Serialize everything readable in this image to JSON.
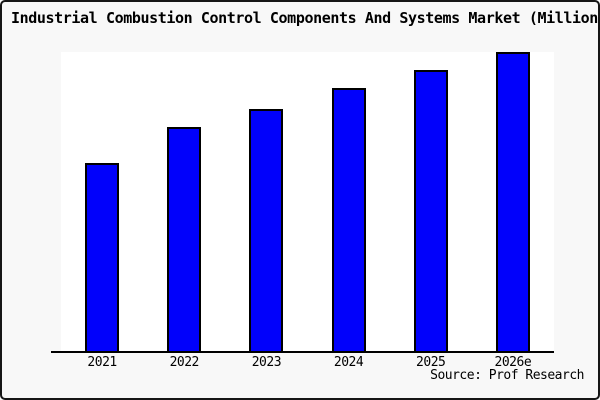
{
  "title_display": "Industrial Combustion Control Components And Systems Market (Million",
  "source": {
    "label": "Source: Prof Research"
  },
  "colors": {
    "frame_background": "#f8f8f8",
    "plot_background": "#ffffff",
    "frame_border": "#161616",
    "bar_fill": "#0101fb",
    "bar_border": "#000000",
    "axis": "#000000",
    "text": "#000000"
  },
  "chart_data": {
    "type": "bar",
    "title": "Industrial Combustion Control Components And Systems Market (Million",
    "categories": [
      "2021",
      "2022",
      "2023",
      "2024",
      "2025",
      "2026e"
    ],
    "values": [
      63,
      75,
      81,
      88,
      94,
      100
    ],
    "values_note": "No y-axis scale shown; values are bar heights as % of tallest (2026e) bar",
    "xlabel": "",
    "ylabel": "",
    "ylim": [
      0,
      100
    ],
    "grid": false,
    "legend": false,
    "y_axis_visible": false,
    "annotation": "Source: Prof Research"
  }
}
